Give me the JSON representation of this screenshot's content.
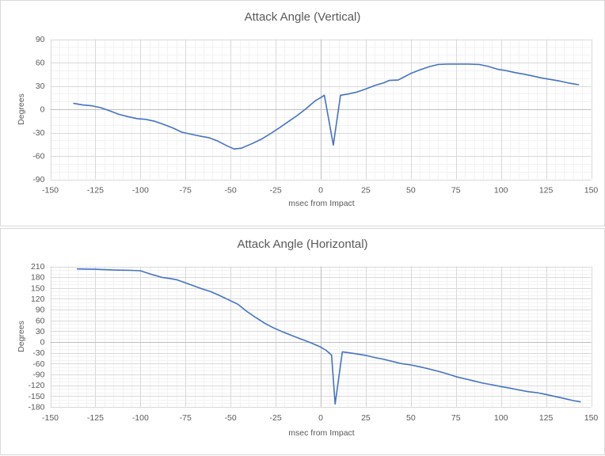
{
  "window": {
    "background": "#ffffff"
  },
  "styles": {
    "series_color": "#4472C4",
    "major_gridline_color": "#D9D9D9",
    "minor_gridline_color": "#F2F2F2",
    "axis_line_color": "#BFBFBF",
    "text_color": "#595959",
    "panel_border_color": "#D9D9D9"
  },
  "chart_data": [
    {
      "type": "line",
      "title": "Attack Angle (Vertical)",
      "xlabel": "msec from Impact",
      "ylabel": "Degrees",
      "xlim": [
        -150,
        150
      ],
      "ylim": [
        -90,
        90
      ],
      "xticks": [
        -150,
        -125,
        -100,
        -75,
        -50,
        -25,
        0,
        25,
        50,
        75,
        100,
        125,
        150
      ],
      "yticks": [
        -90,
        -60,
        -30,
        0,
        30,
        60,
        90
      ],
      "x_minor_step": 5,
      "y_minor_step": 10,
      "grid": "major+minor",
      "legend": "none",
      "line_color": "#4472C4",
      "series": [
        {
          "name": "attack-angle-vertical",
          "points": [
            [
              -137,
              7.5
            ],
            [
              -132,
              5.5
            ],
            [
              -127,
              4.5
            ],
            [
              -122,
              2
            ],
            [
              -117,
              -2
            ],
            [
              -112,
              -6.5
            ],
            [
              -107,
              -9.5
            ],
            [
              -102,
              -12
            ],
            [
              -97,
              -13
            ],
            [
              -92,
              -15.5
            ],
            [
              -87,
              -19.5
            ],
            [
              -82,
              -24
            ],
            [
              -77,
              -29.5
            ],
            [
              -72,
              -32
            ],
            [
              -67,
              -34.5
            ],
            [
              -62,
              -36.5
            ],
            [
              -57,
              -41
            ],
            [
              -52,
              -47
            ],
            [
              -48,
              -51
            ],
            [
              -44,
              -50
            ],
            [
              -38,
              -44
            ],
            [
              -33,
              -38.5
            ],
            [
              -28,
              -31.5
            ],
            [
              -23,
              -24
            ],
            [
              -18,
              -16
            ],
            [
              -13,
              -8
            ],
            [
              -8,
              1
            ],
            [
              -3,
              11
            ],
            [
              0,
              15
            ],
            [
              2,
              18
            ],
            [
              7,
              -46
            ],
            [
              11,
              18
            ],
            [
              15,
              19.5
            ],
            [
              20,
              22
            ],
            [
              25,
              26
            ],
            [
              30,
              30.5
            ],
            [
              35,
              34
            ],
            [
              38,
              37
            ],
            [
              43,
              37.5
            ],
            [
              50,
              46
            ],
            [
              55,
              50.5
            ],
            [
              60,
              54.5
            ],
            [
              65,
              57.5
            ],
            [
              70,
              58
            ],
            [
              76,
              58
            ],
            [
              82,
              58
            ],
            [
              88,
              57.5
            ],
            [
              93,
              55
            ],
            [
              98,
              51.5
            ],
            [
              103,
              49.5
            ],
            [
              108,
              47
            ],
            [
              113,
              45
            ],
            [
              118,
              42.5
            ],
            [
              123,
              40
            ],
            [
              128,
              38
            ],
            [
              133,
              36
            ],
            [
              138,
              33.5
            ],
            [
              143,
              31.5
            ]
          ]
        }
      ]
    },
    {
      "type": "line",
      "title": "Attack Angle (Horizontal)",
      "xlabel": "msec from Impact",
      "ylabel": "Degrees",
      "xlim": [
        -150,
        150
      ],
      "ylim": [
        -180,
        210
      ],
      "xticks": [
        -150,
        -125,
        -100,
        -75,
        -50,
        -25,
        0,
        25,
        50,
        75,
        100,
        125,
        150
      ],
      "yticks": [
        -180,
        -150,
        -120,
        -90,
        -60,
        -30,
        0,
        30,
        60,
        90,
        120,
        150,
        180,
        210
      ],
      "x_minor_step": 5,
      "y_minor_step": 10,
      "grid": "major+minor",
      "legend": "none",
      "line_color": "#4472C4",
      "series": [
        {
          "name": "attack-angle-horizontal",
          "points": [
            [
              -135,
              203
            ],
            [
              -130,
              202.5
            ],
            [
              -125,
              202
            ],
            [
              -120,
              201
            ],
            [
              -115,
              200
            ],
            [
              -110,
              199.5
            ],
            [
              -105,
              199
            ],
            [
              -100,
              198
            ],
            [
              -97,
              193
            ],
            [
              -93,
              186.5
            ],
            [
              -88,
              179.5
            ],
            [
              -84,
              176.5
            ],
            [
              -80,
              173
            ],
            [
              -76,
              166
            ],
            [
              -71,
              157
            ],
            [
              -66,
              148
            ],
            [
              -61,
              140
            ],
            [
              -56,
              129
            ],
            [
              -51,
              117
            ],
            [
              -46,
              105
            ],
            [
              -41,
              85
            ],
            [
              -36,
              68
            ],
            [
              -31,
              52
            ],
            [
              -26,
              39
            ],
            [
              -21,
              28
            ],
            [
              -16,
              18
            ],
            [
              -11,
              8.5
            ],
            [
              -6,
              -1
            ],
            [
              0,
              -14
            ],
            [
              3,
              -23
            ],
            [
              6,
              -36
            ],
            [
              8,
              -172
            ],
            [
              12,
              -27
            ],
            [
              16,
              -30
            ],
            [
              20,
              -33
            ],
            [
              25,
              -37
            ],
            [
              30,
              -43
            ],
            [
              35,
              -48
            ],
            [
              40,
              -54
            ],
            [
              45,
              -60
            ],
            [
              50,
              -63.5
            ],
            [
              55,
              -68.5
            ],
            [
              60,
              -74.5
            ],
            [
              65,
              -81
            ],
            [
              70,
              -88
            ],
            [
              75,
              -96
            ],
            [
              80,
              -102
            ],
            [
              85,
              -108
            ],
            [
              90,
              -114
            ],
            [
              95,
              -118.5
            ],
            [
              100,
              -123.5
            ],
            [
              105,
              -128
            ],
            [
              110,
              -133
            ],
            [
              115,
              -137.5
            ],
            [
              120,
              -140.5
            ],
            [
              125,
              -145.5
            ],
            [
              130,
              -151
            ],
            [
              135,
              -156.5
            ],
            [
              140,
              -162.5
            ],
            [
              144,
              -166
            ]
          ]
        }
      ]
    }
  ]
}
